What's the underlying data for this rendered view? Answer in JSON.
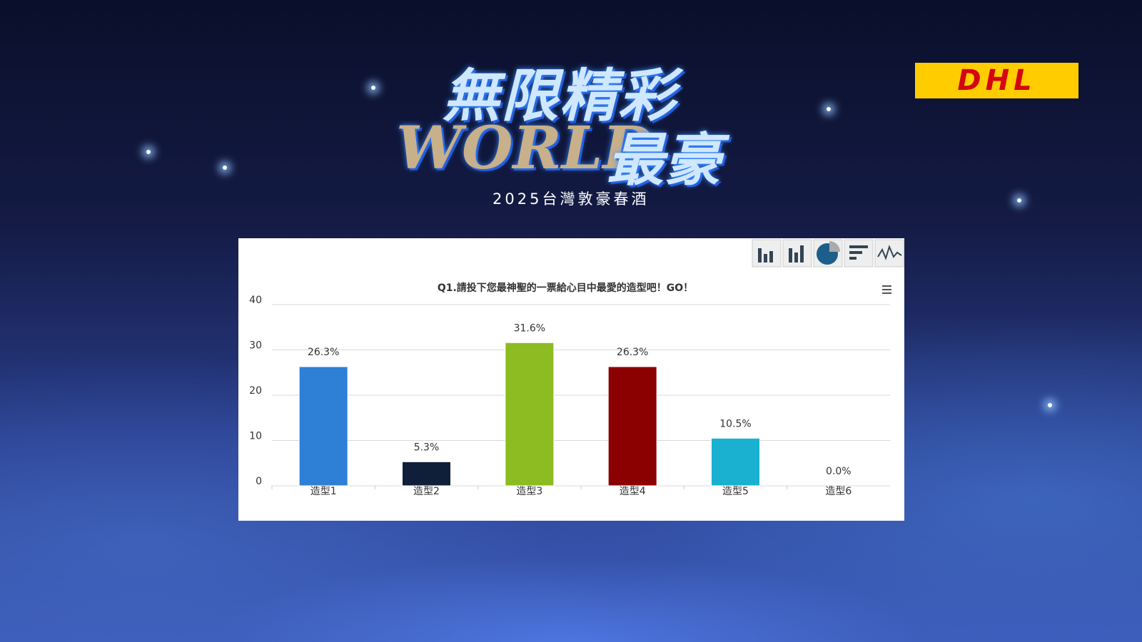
{
  "header": {
    "title_line1": "無限精彩",
    "title_world": "WORLD",
    "title_line2": "最豪",
    "subtitle": "2025台灣敦豪春酒",
    "logo": "DHL"
  },
  "chart_data": {
    "type": "bar",
    "title": "Q1.請投下您最神聖的一票給心目中最愛的造型吧！GO！",
    "categories": [
      "造型1",
      "造型2",
      "造型3",
      "造型4",
      "造型5",
      "造型6"
    ],
    "values": [
      26.3,
      5.3,
      31.6,
      26.3,
      10.5,
      0.0
    ],
    "value_labels": [
      "26.3%",
      "5.3%",
      "31.6%",
      "26.3%",
      "10.5%",
      "0.0%"
    ],
    "colors": [
      "#2e7fd6",
      "#0f1f3a",
      "#8cbb22",
      "#8b0000",
      "#1ab0d0",
      "#7cb5ec"
    ],
    "ylim": [
      0,
      40
    ],
    "yticks": [
      0,
      10,
      20,
      30,
      40
    ],
    "grid": true
  }
}
